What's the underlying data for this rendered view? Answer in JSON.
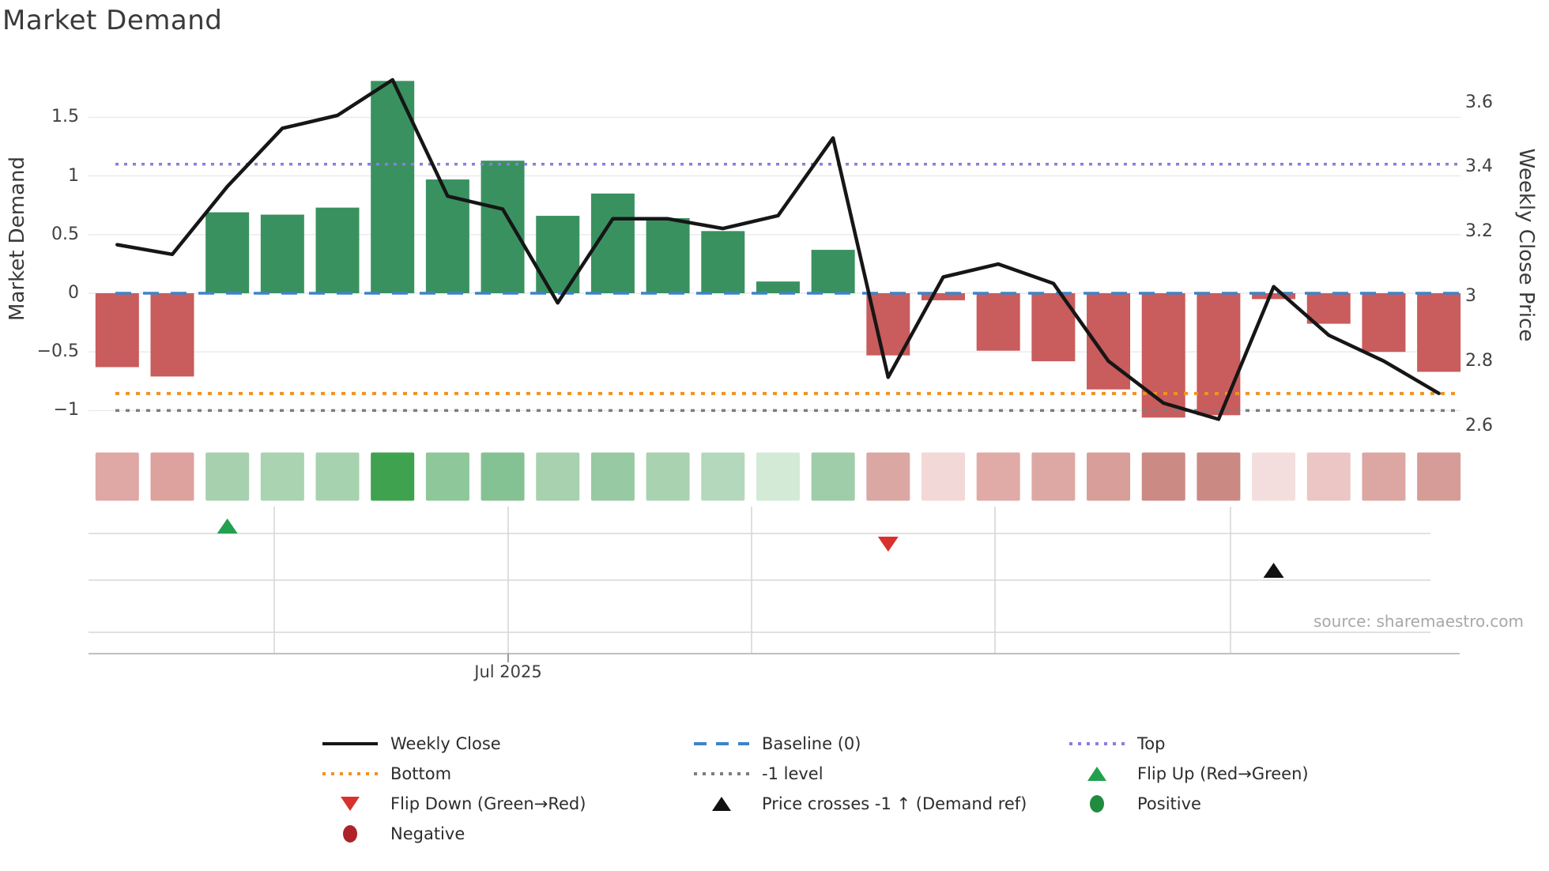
{
  "title": "Market Demand",
  "source_text": "source: sharemaestro.com",
  "axes": {
    "left_title": "Market Demand",
    "right_title": "Weekly Close Price",
    "x_tick_label": "Jul 2025",
    "left_ticks": [
      {
        "label": "1.5",
        "value": 1.5
      },
      {
        "label": "1",
        "value": 1.0
      },
      {
        "label": "0.5",
        "value": 0.5
      },
      {
        "label": "0",
        "value": 0.0
      },
      {
        "label": "−0.5",
        "value": -0.5
      },
      {
        "label": "−1",
        "value": -1.0
      }
    ],
    "right_ticks": [
      {
        "label": "3.6",
        "value": 3.6
      },
      {
        "label": "3.4",
        "value": 3.4
      },
      {
        "label": "3.2",
        "value": 3.2
      },
      {
        "label": "3",
        "value": 3.0
      },
      {
        "label": "2.8",
        "value": 2.8
      },
      {
        "label": "2.6",
        "value": 2.6
      }
    ]
  },
  "colors": {
    "bar_green": "#3a9160",
    "bar_red": "#c95c5c",
    "line_black": "#161616",
    "baseline_blue": "#3d84c6",
    "top_purple": "#8680dc",
    "bottom_orange": "#f2921d",
    "minus1_gray": "#7d7d7d",
    "grid": "#e9e9ef",
    "panel_grid": "#d7d7d7",
    "axis_line": "#bfbfbf",
    "flip_up_green": "#21a14d",
    "flip_down_red": "#d8322e",
    "price_cross_black": "#111111",
    "positive_green": "#218b3f",
    "negative_red": "#ae2329"
  },
  "chart_data": {
    "type": "combo",
    "n_points": 25,
    "x_axis": {
      "tick_label": "Jul 2025",
      "note": "weekly points, only one month tick labeled"
    },
    "left_axis": {
      "label": "Market Demand",
      "ticks": [
        1.5,
        1,
        0.5,
        0,
        -0.5,
        -1
      ],
      "range": [
        -1.35,
        2.0
      ]
    },
    "right_axis": {
      "label": "Weekly Close Price",
      "ticks": [
        3.6,
        3.4,
        3.2,
        3,
        2.8,
        2.6
      ],
      "range": [
        2.55,
        3.72
      ]
    },
    "series": [
      {
        "name": "Market Demand",
        "type": "bar",
        "axis": "left",
        "values": [
          -0.63,
          -0.71,
          0.69,
          0.67,
          0.73,
          1.81,
          0.97,
          1.13,
          0.66,
          0.85,
          0.64,
          0.53,
          0.1,
          0.37,
          -0.53,
          -0.06,
          -0.49,
          -0.58,
          -0.82,
          -1.06,
          -1.04,
          -0.05,
          -0.26,
          -0.5,
          -0.67
        ]
      },
      {
        "name": "Weekly Close",
        "type": "line",
        "axis": "right",
        "values": [
          3.16,
          3.13,
          3.34,
          3.52,
          3.56,
          3.67,
          3.31,
          3.27,
          2.98,
          3.24,
          3.24,
          3.21,
          3.25,
          3.49,
          2.75,
          3.06,
          3.1,
          3.04,
          2.8,
          2.67,
          2.62,
          3.03,
          2.88,
          2.8,
          2.7
        ]
      },
      {
        "name": "Demand heat strip",
        "type": "heatmap",
        "cell_colors": [
          "#dfa8a5",
          "#dda29e",
          "#a6d0ae",
          "#a9d3b1",
          "#a7d2b0",
          "#3fa24e",
          "#8dc79a",
          "#85c293",
          "#a7d1af",
          "#97c9a2",
          "#a9d2b1",
          "#b4d8bb",
          "#d3ead7",
          "#9fcdaa",
          "#dba7a2",
          "#f2d8d6",
          "#e0aaa6",
          "#dda8a3",
          "#d89e99",
          "#cc8a85",
          "#cb8983",
          "#f4dedd",
          "#ecc6c4",
          "#dca7a3",
          "#d69c97"
        ]
      }
    ],
    "reference_lines": [
      {
        "id": "baseline",
        "label": "Baseline (0)",
        "axis": "left",
        "value": 0
      },
      {
        "id": "top",
        "label": "Top",
        "axis": "left",
        "value": 1.1
      },
      {
        "id": "bottom",
        "label": "Bottom",
        "axis": "left",
        "value": -0.855
      },
      {
        "id": "minus1",
        "label": "-1 level",
        "axis": "left",
        "value": -1.0
      }
    ],
    "events": [
      {
        "id": "flip_up",
        "label": "Flip Up (Red→Green)",
        "column": 3
      },
      {
        "id": "flip_down",
        "label": "Flip Down (Green→Red)",
        "column": 15
      },
      {
        "id": "price_cross",
        "label": "Price crosses -1 ↑ (Demand ref)",
        "column": 22
      }
    ],
    "legend_position": "bottom",
    "grid": true
  },
  "legend": {
    "items": [
      {
        "label": "Weekly Close"
      },
      {
        "label": "Baseline (0)"
      },
      {
        "label": "Top"
      },
      {
        "label": "Bottom"
      },
      {
        "label": "-1 level"
      },
      {
        "label": "Flip Up (Red→Green)"
      },
      {
        "label": "Flip Down (Green→Red)"
      },
      {
        "label": "Price crosses -1 ↑ (Demand ref)"
      },
      {
        "label": "Positive"
      },
      {
        "label": "Negative"
      }
    ]
  }
}
